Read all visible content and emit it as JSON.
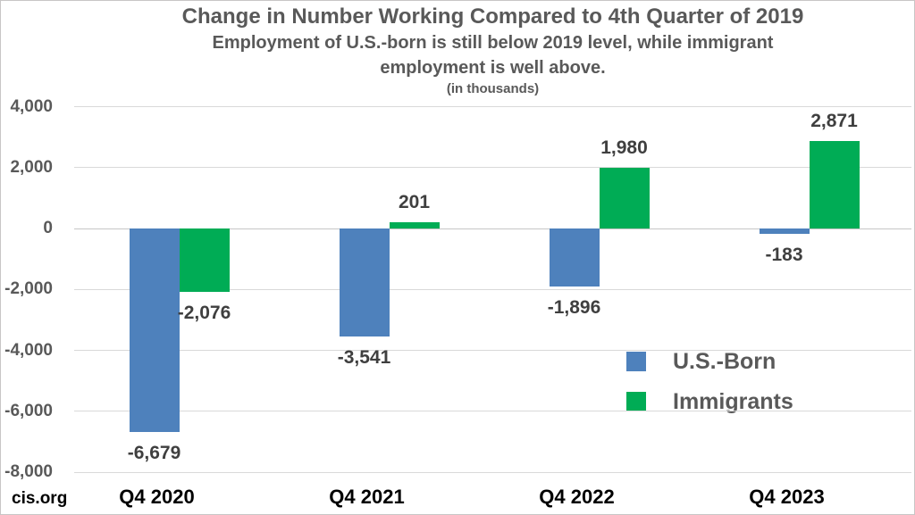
{
  "chart_data": {
    "type": "bar",
    "title": "Change in Number Working Compared to 4th Quarter of 2019",
    "subtitle_lines": [
      "Employment of U.S.-born is still below 2019 level, while immigrant",
      "employment is well above."
    ],
    "units_note": "(in thousands)",
    "categories": [
      "Q4 2020",
      "Q4 2021",
      "Q4 2022",
      "Q4 2023"
    ],
    "series": [
      {
        "name": "U.S.-Born",
        "color": "#4e81bc",
        "values": [
          -6679,
          -3541,
          -1896,
          -183
        ]
      },
      {
        "name": "Immigrants",
        "color": "#00ac55",
        "values": [
          -2076,
          201,
          1980,
          2871
        ]
      }
    ],
    "y_axis": {
      "min": -8000,
      "max": 4000,
      "tick_interval": 2000,
      "tick_labels": [
        "4,000",
        "2,000",
        "0",
        "-2,000",
        "-4,000",
        "-6,000",
        "-8,000"
      ]
    },
    "grid": true,
    "legend_position": "inside-right",
    "value_labels_shown": true
  },
  "branding": {
    "source": "cis.org"
  },
  "colors": {
    "title_text": "#595959",
    "axis_text": "#595959",
    "value_label_text": "#3f3f3f",
    "category_text": "#000000",
    "gridline": "#d9d9d9",
    "us_born_blue": "#4e81bc",
    "immigrants_green": "#00ac55"
  }
}
